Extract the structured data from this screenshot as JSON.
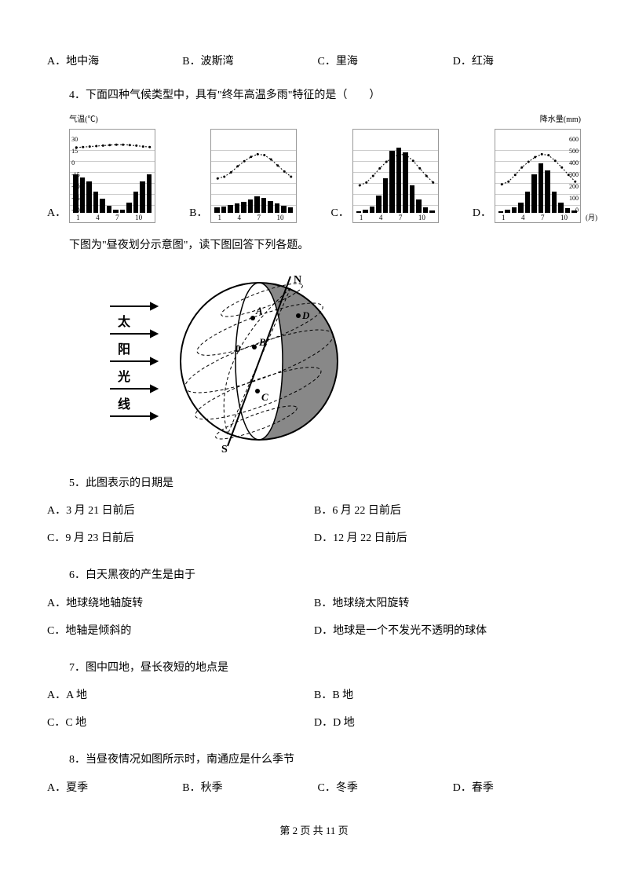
{
  "q3_options": {
    "a": "A．地中海",
    "b": "B．波斯湾",
    "c": "C．里海",
    "d": "D．红海"
  },
  "q4": {
    "text": "4．下面四种气候类型中，具有\"终年高温多雨\"特征的是（　　）",
    "temp_axis_title": "气温(℃)",
    "precip_axis_title": "降水量(mm)",
    "temp_ticks": [
      "30",
      "15",
      "0",
      "-15",
      "-30",
      "-45",
      "-60"
    ],
    "precip_ticks": [
      "600",
      "500",
      "400",
      "300",
      "200",
      "100",
      "0"
    ],
    "x_ticks": [
      "1",
      "4",
      "7",
      "10"
    ],
    "x_unit": "(月)",
    "charts": {
      "A": {
        "label": "A．",
        "temp": [
          12,
          13,
          14,
          15,
          16,
          17,
          18,
          18,
          17,
          16,
          14,
          13
        ],
        "precip": [
          55,
          50,
          45,
          30,
          20,
          10,
          5,
          5,
          15,
          30,
          45,
          55
        ],
        "temp_offset": 20,
        "temp_scale": 0.6,
        "precip_scale": 0.9
      },
      "B": {
        "label": "B．",
        "temp": [
          -2,
          0,
          5,
          12,
          18,
          23,
          26,
          25,
          20,
          13,
          6,
          0
        ],
        "precip": [
          10,
          12,
          15,
          18,
          20,
          25,
          30,
          28,
          22,
          18,
          14,
          10
        ],
        "temp_offset": 50,
        "temp_scale": 1.1,
        "precip_scale": 0.7
      },
      "C": {
        "label": "C．",
        "temp": [
          -5,
          -2,
          5,
          13,
          20,
          25,
          28,
          27,
          21,
          13,
          5,
          -2
        ],
        "precip": [
          3,
          5,
          10,
          25,
          50,
          90,
          95,
          88,
          40,
          20,
          8,
          4
        ],
        "temp_offset": 55,
        "temp_scale": 1.2,
        "precip_scale": 0.88
      },
      "D": {
        "label": "D．",
        "temp": [
          -4,
          -1,
          6,
          14,
          20,
          25,
          28,
          27,
          21,
          14,
          6,
          -1
        ],
        "precip": [
          3,
          5,
          8,
          15,
          30,
          55,
          70,
          60,
          30,
          15,
          7,
          4
        ],
        "temp_offset": 55,
        "temp_scale": 1.2,
        "precip_scale": 0.9
      }
    }
  },
  "globe_intro": "下图为\"昼夜划分示意图\"，读下图回答下列各题。",
  "globe_labels": {
    "sun": [
      "太",
      "阳",
      "光",
      "线"
    ],
    "N": "N",
    "S": "S",
    "A": "A",
    "B": "B",
    "C": "C",
    "D": "D",
    "O": "0"
  },
  "q5": {
    "text": "5．此图表示的日期是",
    "a": "A．3 月 21 日前后",
    "b": "B．6 月 22 日前后",
    "c": "C．9 月 23 日前后",
    "d": "D．12 月 22 日前后"
  },
  "q6": {
    "text": "6．白天黑夜的产生是由于",
    "a": "A．地球绕地轴旋转",
    "b": "B．地球绕太阳旋转",
    "c": "C．地轴是倾斜的",
    "d": "D．地球是一个不发光不透明的球体"
  },
  "q7": {
    "text": "7．图中四地，昼长夜短的地点是",
    "a": "A．A 地",
    "b": "B．B 地",
    "c": "C．C 地",
    "d": "D．D 地"
  },
  "q8": {
    "text": "8．当昼夜情况如图所示时，南通应是什么季节",
    "a": "A．夏季",
    "b": "B．秋季",
    "c": "C．冬季",
    "d": "D．春季"
  },
  "footer": "第 2 页 共 11 页"
}
